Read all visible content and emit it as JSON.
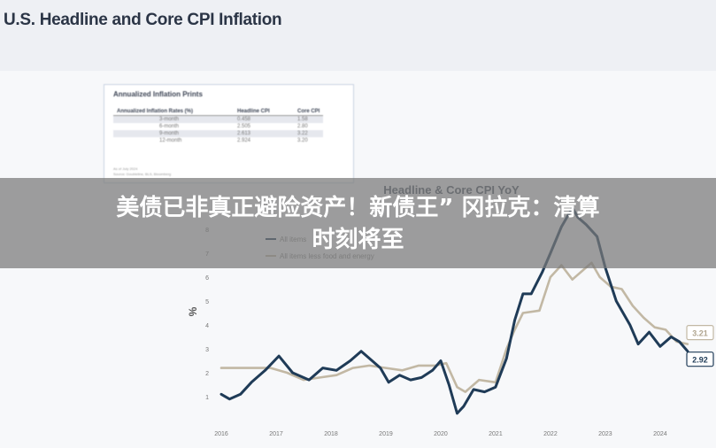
{
  "slide": {
    "title": "U.S. Headline and Core CPI Inflation"
  },
  "inset": {
    "title": "Annualized Inflation Prints",
    "headers": [
      "Annualized Inflation Rates (%)",
      "Headline CPI",
      "Core CPI"
    ],
    "rows": [
      [
        "3-month",
        "0.458",
        "1.58"
      ],
      [
        "6-month",
        "2.505",
        "2.80"
      ],
      [
        "9-month",
        "2.613",
        "3.22"
      ],
      [
        "12-month",
        "2.924",
        "3.20"
      ]
    ],
    "footnote": [
      "As of July 2024",
      "Source: Doubleline, BLS, Bloomberg"
    ]
  },
  "banner": {
    "line1": "美债已非真正避险资产！新债王” 冈拉克：清算",
    "line2": "时刻将至"
  },
  "colors": {
    "headline": "#1f3b57",
    "core": "#c2b8a4",
    "banner": "#787878"
  },
  "chart_data": {
    "type": "line",
    "title": "Headline & Core CPI YoY",
    "ylabel": "%",
    "xlabel": "",
    "ylim": [
      0,
      9
    ],
    "xlim": [
      2016,
      2024.6
    ],
    "y_ticks": [
      "1",
      "2",
      "3",
      "4",
      "5",
      "6",
      "7",
      "8"
    ],
    "x_ticks": [
      "2016",
      "2017",
      "2018",
      "2019",
      "2020",
      "2021",
      "2022",
      "2023",
      "2024"
    ],
    "legend": [
      "All items",
      "All items less food and energy"
    ],
    "end_labels": [
      "3.21",
      "2.92"
    ],
    "series": [
      {
        "name": "All items",
        "x": [
          2016.0,
          2016.15,
          2016.35,
          2016.55,
          2016.8,
          2017.05,
          2017.3,
          2017.6,
          2017.85,
          2018.1,
          2018.35,
          2018.55,
          2018.75,
          2018.9,
          2019.05,
          2019.25,
          2019.45,
          2019.65,
          2019.85,
          2020.0,
          2020.15,
          2020.3,
          2020.42,
          2020.6,
          2020.8,
          2021.0,
          2021.2,
          2021.35,
          2021.5,
          2021.65,
          2021.85,
          2022.0,
          2022.2,
          2022.4,
          2022.5,
          2022.65,
          2022.85,
          2023.0,
          2023.2,
          2023.45,
          2023.6,
          2023.8,
          2024.0,
          2024.2,
          2024.35,
          2024.5
        ],
        "y": [
          1.1,
          0.9,
          1.1,
          1.6,
          2.1,
          2.7,
          2.0,
          1.7,
          2.2,
          2.1,
          2.5,
          2.9,
          2.5,
          2.2,
          1.6,
          1.9,
          1.7,
          1.8,
          2.1,
          2.5,
          1.5,
          0.3,
          0.6,
          1.3,
          1.2,
          1.4,
          2.6,
          4.2,
          5.3,
          5.3,
          6.2,
          7.0,
          8.1,
          8.9,
          8.5,
          8.2,
          7.7,
          6.4,
          5.0,
          4.0,
          3.2,
          3.7,
          3.1,
          3.5,
          3.3,
          2.9
        ]
      },
      {
        "name": "All items less food and energy",
        "x": [
          2016.0,
          2016.3,
          2016.6,
          2016.9,
          2017.2,
          2017.5,
          2017.8,
          2018.1,
          2018.4,
          2018.7,
          2019.0,
          2019.3,
          2019.6,
          2019.9,
          2020.1,
          2020.3,
          2020.45,
          2020.7,
          2021.0,
          2021.2,
          2021.35,
          2021.5,
          2021.8,
          2022.0,
          2022.2,
          2022.4,
          2022.6,
          2022.75,
          2022.9,
          2023.1,
          2023.3,
          2023.5,
          2023.7,
          2023.9,
          2024.1,
          2024.3,
          2024.5
        ],
        "y": [
          2.2,
          2.2,
          2.2,
          2.2,
          2.0,
          1.7,
          1.8,
          1.9,
          2.2,
          2.3,
          2.2,
          2.1,
          2.3,
          2.3,
          2.4,
          1.4,
          1.2,
          1.7,
          1.6,
          3.0,
          3.8,
          4.5,
          4.6,
          6.0,
          6.5,
          5.9,
          6.3,
          6.6,
          6.0,
          5.6,
          5.5,
          4.8,
          4.3,
          3.9,
          3.8,
          3.3,
          3.2
        ]
      }
    ]
  }
}
